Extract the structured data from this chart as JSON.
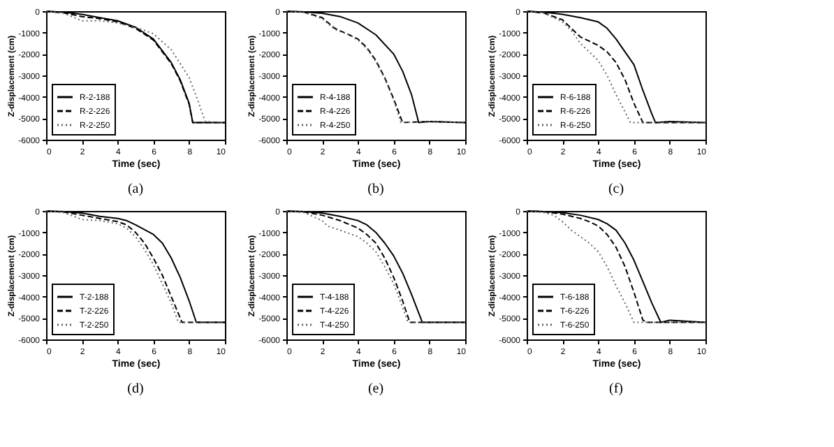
{
  "chart_data": [
    {
      "type": "line",
      "title": "(a)",
      "xlabel": "Time (sec)",
      "ylabel": "Z-displacement (cm)",
      "xlim": [
        0,
        10
      ],
      "xticks": [
        0,
        2,
        4,
        6,
        8,
        10
      ],
      "ylim": [
        -6000,
        0
      ],
      "yticks": [
        -6000,
        -5000,
        -4000,
        -3000,
        -2000,
        -1000,
        0
      ],
      "grid": false,
      "legend": "bottom left",
      "series": [
        {
          "name": "R-2-188",
          "color": "#000000",
          "line_style": "solid",
          "x": [
            0,
            1,
            2,
            3,
            4,
            5,
            6,
            7,
            7.5,
            8,
            8.2,
            10
          ],
          "values": [
            0,
            -50,
            -150,
            -300,
            -450,
            -750,
            -1300,
            -2400,
            -3200,
            -4300,
            -5200,
            -5200
          ]
        },
        {
          "name": "R-2-226",
          "color": "#000000",
          "line_style": "dashed",
          "x": [
            0,
            1,
            2,
            3,
            4,
            5,
            6,
            7,
            7.5,
            8,
            8.2,
            10
          ],
          "values": [
            0,
            -80,
            -250,
            -350,
            -500,
            -800,
            -1350,
            -2450,
            -3250,
            -4350,
            -5200,
            -5200
          ]
        },
        {
          "name": "R-2-250",
          "color": "#666666",
          "line_style": "dotted",
          "x": [
            0,
            1,
            2,
            3,
            4,
            5,
            6,
            7,
            8,
            8.5,
            8.9,
            10
          ],
          "values": [
            0,
            -100,
            -450,
            -450,
            -550,
            -750,
            -1050,
            -1800,
            -3100,
            -4200,
            -5150,
            -5200
          ]
        }
      ]
    },
    {
      "type": "line",
      "title": "(b)",
      "xlabel": "Time (sec)",
      "ylabel": "Z-displacement (cm)",
      "xlim": [
        0,
        10
      ],
      "xticks": [
        0,
        2,
        4,
        6,
        8,
        10
      ],
      "ylim": [
        -6000,
        0
      ],
      "yticks": [
        -6000,
        -5000,
        -4000,
        -3000,
        -2000,
        -1000,
        0
      ],
      "grid": false,
      "legend": "bottom left",
      "series": [
        {
          "name": "R-4-188",
          "color": "#000000",
          "line_style": "solid",
          "x": [
            0,
            1,
            2,
            3,
            4,
            5,
            6,
            6.5,
            7,
            7.4,
            8,
            10
          ],
          "values": [
            0,
            -30,
            -100,
            -250,
            -550,
            -1100,
            -2000,
            -2800,
            -3900,
            -5200,
            -5150,
            -5200
          ]
        },
        {
          "name": "R-4-226",
          "color": "#000000",
          "line_style": "dashed",
          "x": [
            0,
            1,
            2,
            2.7,
            3.5,
            4,
            4.5,
            5,
            5.5,
            6,
            6.5,
            8,
            10
          ],
          "values": [
            0,
            -50,
            -300,
            -800,
            -1100,
            -1300,
            -1700,
            -2300,
            -3100,
            -4100,
            -5200,
            -5150,
            -5200
          ]
        },
        {
          "name": "R-4-250",
          "color": "#666666",
          "line_style": "dotted",
          "x": [
            0,
            1,
            2,
            2.7,
            3.5,
            4,
            4.5,
            5,
            5.5,
            6,
            6.4,
            8,
            10
          ],
          "values": [
            0,
            -60,
            -350,
            -850,
            -1100,
            -1350,
            -1750,
            -2350,
            -3150,
            -4150,
            -5200,
            -5150,
            -5200
          ]
        }
      ]
    },
    {
      "type": "line",
      "title": "(c)",
      "xlabel": "Time (sec)",
      "ylabel": "Z-displacement (cm)",
      "xlim": [
        0,
        10
      ],
      "xticks": [
        0,
        2,
        4,
        6,
        8,
        10
      ],
      "ylim": [
        -6000,
        0
      ],
      "yticks": [
        -6000,
        -5000,
        -4000,
        -3000,
        -2000,
        -1000,
        0
      ],
      "grid": false,
      "legend": "bottom left",
      "series": [
        {
          "name": "R-6-188",
          "color": "#000000",
          "line_style": "solid",
          "x": [
            0,
            1,
            2,
            3,
            4,
            4.5,
            5,
            6,
            6.5,
            7,
            7.2,
            8,
            10
          ],
          "values": [
            0,
            -50,
            -150,
            -300,
            -500,
            -800,
            -1300,
            -2500,
            -3700,
            -4800,
            -5200,
            -5150,
            -5200
          ]
        },
        {
          "name": "R-6-226",
          "color": "#000000",
          "line_style": "dashed",
          "x": [
            0,
            1,
            2,
            2.5,
            3,
            3.5,
            4,
            4.5,
            5,
            5.5,
            6,
            6.5,
            10
          ],
          "values": [
            0,
            -100,
            -400,
            -800,
            -1200,
            -1400,
            -1600,
            -1900,
            -2400,
            -3200,
            -4300,
            -5200,
            -5200
          ]
        },
        {
          "name": "R-6-250",
          "color": "#666666",
          "line_style": "dotted",
          "x": [
            0,
            1,
            2,
            2.5,
            3,
            3.5,
            4,
            4.5,
            5,
            5.5,
            5.8,
            10
          ],
          "values": [
            0,
            -100,
            -500,
            -900,
            -1500,
            -1900,
            -2300,
            -3000,
            -3900,
            -4700,
            -5200,
            -5200
          ]
        }
      ]
    },
    {
      "type": "line",
      "title": "(d)",
      "xlabel": "Time (sec)",
      "ylabel": "Z-displacement (cm)",
      "xlim": [
        0,
        10
      ],
      "xticks": [
        0,
        2,
        4,
        6,
        8,
        10
      ],
      "ylim": [
        -6000,
        0
      ],
      "yticks": [
        -6000,
        -5000,
        -4000,
        -3000,
        -2000,
        -1000,
        0
      ],
      "grid": false,
      "legend": "bottom left",
      "series": [
        {
          "name": "T-2-188",
          "color": "#000000",
          "line_style": "solid",
          "x": [
            0,
            1,
            2,
            3,
            4,
            4.5,
            5,
            6,
            6.5,
            7,
            7.5,
            8,
            8.4,
            10
          ],
          "values": [
            0,
            -30,
            -100,
            -250,
            -350,
            -450,
            -650,
            -1100,
            -1500,
            -2200,
            -3100,
            -4200,
            -5200,
            -5200
          ]
        },
        {
          "name": "T-2-226",
          "color": "#000000",
          "line_style": "dashed",
          "x": [
            0,
            1,
            2,
            3,
            4,
            4.5,
            5,
            5.5,
            6,
            6.5,
            7,
            7.6,
            10
          ],
          "values": [
            0,
            -50,
            -200,
            -350,
            -500,
            -650,
            -1000,
            -1500,
            -2200,
            -3000,
            -4000,
            -5200,
            -5200
          ]
        },
        {
          "name": "T-2-250",
          "color": "#666666",
          "line_style": "dotted",
          "x": [
            0,
            1,
            2,
            3,
            4,
            4.5,
            5,
            5.5,
            6,
            6.5,
            7,
            7.4,
            10
          ],
          "values": [
            0,
            -80,
            -400,
            -450,
            -600,
            -800,
            -1200,
            -1800,
            -2500,
            -3400,
            -4300,
            -5200,
            -5200
          ]
        }
      ]
    },
    {
      "type": "line",
      "title": "(e)",
      "xlabel": "Time (sec)",
      "ylabel": "Z-displacement (cm)",
      "xlim": [
        0,
        10
      ],
      "xticks": [
        0,
        2,
        4,
        6,
        8,
        10
      ],
      "ylim": [
        -6000,
        0
      ],
      "yticks": [
        -6000,
        -5000,
        -4000,
        -3000,
        -2000,
        -1000,
        0
      ],
      "grid": false,
      "legend": "bottom left",
      "series": [
        {
          "name": "T-4-188",
          "color": "#000000",
          "line_style": "solid",
          "x": [
            0,
            1,
            2,
            3,
            4,
            4.5,
            5,
            5.5,
            6,
            6.5,
            7,
            7.6,
            10
          ],
          "values": [
            0,
            -30,
            -100,
            -250,
            -450,
            -650,
            -1000,
            -1500,
            -2100,
            -2900,
            -3900,
            -5200,
            -5200
          ]
        },
        {
          "name": "T-4-226",
          "color": "#000000",
          "line_style": "dashed",
          "x": [
            0,
            1,
            2,
            3,
            4,
            4.5,
            5,
            5.5,
            6,
            6.5,
            6.9,
            10
          ],
          "values": [
            0,
            -50,
            -200,
            -450,
            -800,
            -1100,
            -1500,
            -2200,
            -3100,
            -4200,
            -5200,
            -5200
          ]
        },
        {
          "name": "T-4-250",
          "color": "#666666",
          "line_style": "dotted",
          "x": [
            0,
            1,
            2,
            2.3,
            3,
            4,
            4.5,
            5,
            5.5,
            6,
            6.5,
            6.8,
            10
          ],
          "values": [
            0,
            -80,
            -450,
            -700,
            -900,
            -1200,
            -1500,
            -1900,
            -2600,
            -3400,
            -4500,
            -5200,
            -5200
          ]
        }
      ]
    },
    {
      "type": "line",
      "title": "(f)",
      "xlabel": "Time (sec)",
      "ylabel": "Z-displacement (cm)",
      "xlim": [
        0,
        10
      ],
      "xticks": [
        0,
        2,
        4,
        6,
        8,
        10
      ],
      "ylim": [
        -6000,
        0
      ],
      "yticks": [
        -6000,
        -5000,
        -4000,
        -3000,
        -2000,
        -1000,
        0
      ],
      "grid": false,
      "legend": "bottom left",
      "series": [
        {
          "name": "T-6-188",
          "color": "#000000",
          "line_style": "solid",
          "x": [
            0,
            1,
            2,
            3,
            4,
            4.5,
            5,
            5.5,
            6,
            6.5,
            7,
            7.5,
            8,
            10
          ],
          "values": [
            0,
            -30,
            -80,
            -200,
            -400,
            -600,
            -900,
            -1500,
            -2300,
            -3300,
            -4300,
            -5200,
            -5100,
            -5200
          ]
        },
        {
          "name": "T-6-226",
          "color": "#000000",
          "line_style": "dashed",
          "x": [
            0,
            1,
            2,
            3,
            3.5,
            4,
            4.5,
            5,
            5.5,
            6,
            6.5,
            6.7,
            10
          ],
          "values": [
            0,
            -40,
            -150,
            -350,
            -500,
            -700,
            -1100,
            -1700,
            -2600,
            -3800,
            -5100,
            -5200,
            -5200
          ]
        },
        {
          "name": "T-6-250",
          "color": "#666666",
          "line_style": "dotted",
          "x": [
            0,
            1,
            1.5,
            2,
            2.5,
            3,
            3.5,
            4,
            4.5,
            5,
            5.5,
            6,
            10
          ],
          "values": [
            0,
            -80,
            -200,
            -500,
            -900,
            -1200,
            -1500,
            -1900,
            -2600,
            -3500,
            -4300,
            -5200,
            -5200
          ]
        }
      ]
    }
  ]
}
